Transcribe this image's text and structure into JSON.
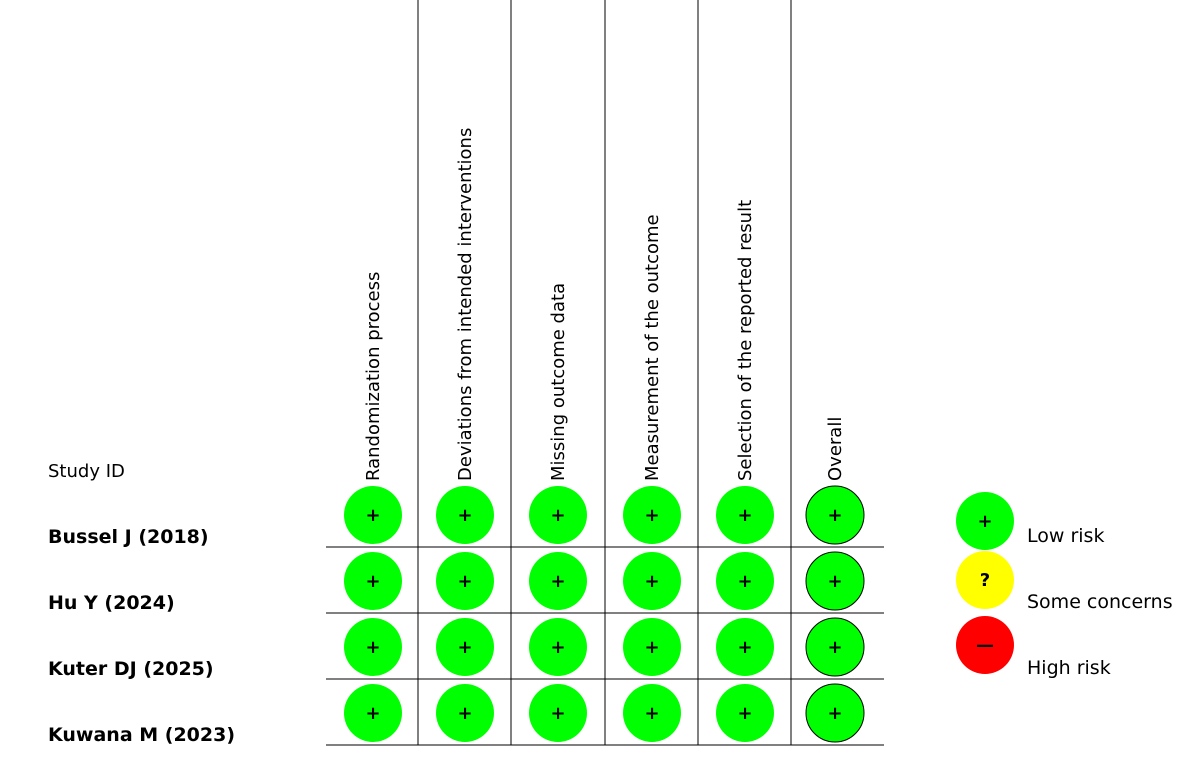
{
  "header": {
    "study_id_label": "Study ID"
  },
  "domains": [
    "Randomization process",
    "Deviations from intended interventions",
    "Missing outcome data",
    "Measurement of the outcome",
    "Selection of the reported result",
    "Overall"
  ],
  "studies": [
    {
      "name": "Bussel J (2018)",
      "judgements": [
        "low",
        "low",
        "low",
        "low",
        "low",
        "low"
      ]
    },
    {
      "name": "Hu Y (2024)",
      "judgements": [
        "low",
        "low",
        "low",
        "low",
        "low",
        "low"
      ]
    },
    {
      "name": "Kuter DJ (2025)",
      "judgements": [
        "low",
        "low",
        "low",
        "low",
        "low",
        "low"
      ]
    },
    {
      "name": "Kuwana M (2023)",
      "judgements": [
        "low",
        "low",
        "low",
        "low",
        "low",
        "low"
      ]
    }
  ],
  "legend": [
    {
      "key": "low",
      "label": "Low risk",
      "symbol": "+",
      "color": "#00ff00"
    },
    {
      "key": "some",
      "label": "Some concerns",
      "symbol": "?",
      "color": "#ffff00"
    },
    {
      "key": "high",
      "label": "High risk",
      "symbol": "—",
      "color": "#ff0000"
    }
  ]
}
